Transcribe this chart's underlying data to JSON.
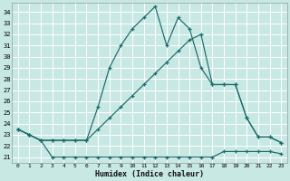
{
  "xlabel": "Humidex (Indice chaleur)",
  "bg_color": "#c8e8e4",
  "line_color": "#1a6b6b",
  "grid_color": "#ffffff",
  "xlim": [
    -0.5,
    23.5
  ],
  "ylim": [
    20.5,
    34.8
  ],
  "yticks": [
    21,
    22,
    23,
    24,
    25,
    26,
    27,
    28,
    29,
    30,
    31,
    32,
    33,
    34
  ],
  "xticks": [
    0,
    1,
    2,
    3,
    4,
    5,
    6,
    7,
    8,
    9,
    10,
    11,
    12,
    13,
    14,
    15,
    16,
    17,
    18,
    19,
    20,
    21,
    22,
    23
  ],
  "line_top_x": [
    0,
    1,
    2,
    3,
    4,
    5,
    6,
    7,
    8,
    9,
    10,
    11,
    12,
    13,
    14,
    15,
    16,
    17,
    18,
    19,
    20,
    21,
    22,
    23
  ],
  "line_top_y": [
    23.5,
    23.0,
    22.5,
    22.5,
    22.5,
    22.5,
    22.5,
    25.5,
    29.0,
    31.0,
    32.5,
    33.5,
    34.5,
    31.0,
    33.5,
    32.5,
    29.0,
    27.5,
    27.5,
    27.5,
    24.5,
    22.8,
    22.8,
    22.3
  ],
  "line_mid_x": [
    0,
    1,
    2,
    3,
    4,
    5,
    6,
    7,
    8,
    9,
    10,
    11,
    12,
    13,
    14,
    15,
    16,
    17,
    18,
    19,
    20,
    21,
    22,
    23
  ],
  "line_mid_y": [
    23.5,
    23.0,
    22.5,
    22.5,
    22.5,
    22.5,
    22.5,
    23.5,
    24.5,
    25.5,
    26.5,
    27.5,
    28.5,
    29.5,
    30.5,
    31.5,
    32.0,
    27.5,
    27.5,
    27.5,
    24.5,
    22.8,
    22.8,
    22.3
  ],
  "line_bot_x": [
    0,
    1,
    2,
    3,
    4,
    5,
    6,
    7,
    8,
    9,
    10,
    11,
    12,
    13,
    14,
    15,
    16,
    17,
    18,
    19,
    20,
    21,
    22,
    23
  ],
  "line_bot_y": [
    23.5,
    23.0,
    22.5,
    21.0,
    21.0,
    21.0,
    21.0,
    21.0,
    21.0,
    21.0,
    21.0,
    21.0,
    21.0,
    21.0,
    21.0,
    21.0,
    21.0,
    21.0,
    21.5,
    21.5,
    21.5,
    21.5,
    21.5,
    21.3
  ]
}
